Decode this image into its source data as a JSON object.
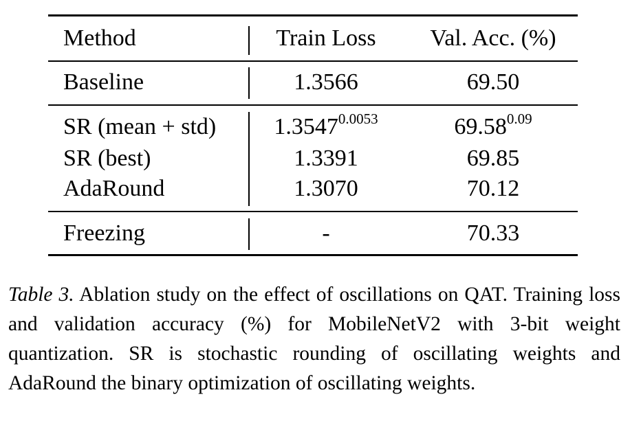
{
  "table": {
    "headers": {
      "method": "Method",
      "train_loss": "Train Loss",
      "val_acc": "Val. Acc. (%)"
    },
    "rows": [
      {
        "method": "Baseline",
        "train_loss": "1.3566",
        "train_loss_sup": "",
        "val_acc": "69.50",
        "val_acc_sup": ""
      },
      {
        "method": "SR (mean + std)",
        "train_loss": "1.3547",
        "train_loss_sup": "0.0053",
        "val_acc": "69.58",
        "val_acc_sup": "0.09"
      },
      {
        "method": "SR (best)",
        "train_loss": "1.3391",
        "train_loss_sup": "",
        "val_acc": "69.85",
        "val_acc_sup": ""
      },
      {
        "method": "AdaRound",
        "train_loss": "1.3070",
        "train_loss_sup": "",
        "val_acc": "70.12",
        "val_acc_sup": ""
      },
      {
        "method": "Freezing",
        "train_loss": "-",
        "train_loss_sup": "",
        "val_acc": "70.33",
        "val_acc_sup": ""
      }
    ]
  },
  "caption": {
    "label": "Table 3.",
    "text": "Ablation study on the effect of oscillations on QAT. Training loss and validation accuracy (%) for MobileNetV2 with 3-bit weight quantization.  SR is stochastic rounding of oscillating weights and AdaRound the binary optimization of oscillating weights."
  }
}
